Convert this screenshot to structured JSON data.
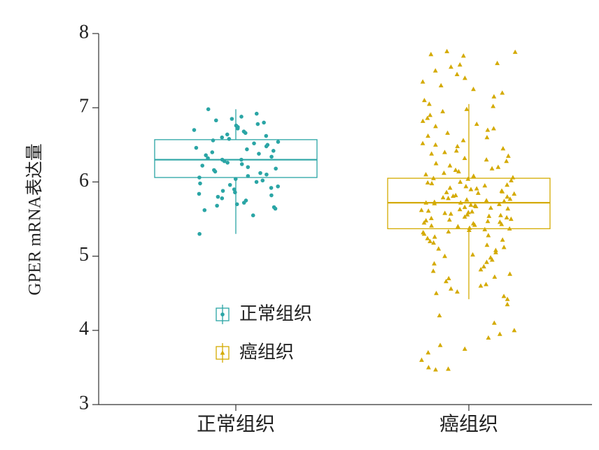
{
  "chart_data": {
    "type": "box",
    "ylabel": "GPER mRNA表达量",
    "categories": [
      "正常组织",
      "癌组织"
    ],
    "ylim": [
      3,
      8
    ],
    "yticks": [
      3,
      4,
      5,
      6,
      7,
      8
    ],
    "legend": "lower center",
    "series": [
      {
        "name": "正常组织",
        "color": "#2aa5a5",
        "marker": "circle",
        "stats": {
          "whislo": 5.3,
          "q1": 6.06,
          "med": 6.3,
          "q3": 6.57,
          "whishi": 6.98
        },
        "points": [
          6.98,
          6.92,
          6.88,
          6.85,
          6.83,
          6.8,
          6.78,
          6.76,
          6.74,
          6.72,
          6.7,
          6.68,
          6.66,
          6.64,
          6.62,
          6.6,
          6.58,
          6.56,
          6.54,
          6.52,
          6.5,
          6.48,
          6.46,
          6.44,
          6.42,
          6.4,
          6.38,
          6.36,
          6.34,
          6.32,
          6.3,
          6.3,
          6.28,
          6.26,
          6.24,
          6.22,
          6.2,
          6.18,
          6.16,
          6.14,
          6.12,
          6.1,
          6.08,
          6.06,
          6.04,
          6.02,
          6.0,
          5.98,
          5.96,
          5.94,
          5.92,
          5.9,
          5.88,
          5.86,
          5.84,
          5.82,
          5.8,
          5.78,
          5.75,
          5.72,
          5.7,
          5.68,
          5.66,
          5.64,
          5.62,
          5.55,
          5.3
        ]
      },
      {
        "name": "癌组织",
        "color": "#d4aa00",
        "marker": "triangle",
        "stats": {
          "whislo": 4.42,
          "q1": 5.37,
          "med": 5.72,
          "q3": 6.05,
          "whishi": 7.05
        },
        "points": [
          7.76,
          7.75,
          7.72,
          7.7,
          7.6,
          7.58,
          7.55,
          7.5,
          7.45,
          7.4,
          7.35,
          7.3,
          7.25,
          7.2,
          7.15,
          7.1,
          7.05,
          7.02,
          6.98,
          6.95,
          6.9,
          6.86,
          6.82,
          6.78,
          6.75,
          6.72,
          6.7,
          6.66,
          6.62,
          6.6,
          6.56,
          6.52,
          6.5,
          6.48,
          6.45,
          6.42,
          6.4,
          6.38,
          6.35,
          6.32,
          6.3,
          6.28,
          6.25,
          6.22,
          6.2,
          6.18,
          6.16,
          6.14,
          6.12,
          6.1,
          6.08,
          6.06,
          6.05,
          6.04,
          6.02,
          6.0,
          5.99,
          5.98,
          5.96,
          5.95,
          5.94,
          5.92,
          5.91,
          5.9,
          5.88,
          5.87,
          5.86,
          5.85,
          5.84,
          5.82,
          5.81,
          5.8,
          5.79,
          5.78,
          5.77,
          5.76,
          5.75,
          5.74,
          5.73,
          5.72,
          5.72,
          5.71,
          5.7,
          5.69,
          5.68,
          5.67,
          5.66,
          5.65,
          5.64,
          5.63,
          5.62,
          5.61,
          5.6,
          5.59,
          5.58,
          5.57,
          5.56,
          5.55,
          5.54,
          5.53,
          5.52,
          5.51,
          5.5,
          5.49,
          5.48,
          5.47,
          5.46,
          5.45,
          5.44,
          5.43,
          5.42,
          5.41,
          5.4,
          5.38,
          5.37,
          5.36,
          5.35,
          5.33,
          5.32,
          5.3,
          5.28,
          5.26,
          5.24,
          5.22,
          5.2,
          5.18,
          5.15,
          5.12,
          5.1,
          5.08,
          5.05,
          5.02,
          5.0,
          4.98,
          4.95,
          4.92,
          4.9,
          4.86,
          4.82,
          4.8,
          4.76,
          4.72,
          4.7,
          4.66,
          4.62,
          4.6,
          4.56,
          4.52,
          4.5,
          4.46,
          4.42,
          4.35,
          4.2,
          4.1,
          4.0,
          3.95,
          3.9,
          3.8,
          3.75,
          3.7,
          3.6,
          3.5,
          3.48,
          3.47
        ]
      }
    ]
  }
}
